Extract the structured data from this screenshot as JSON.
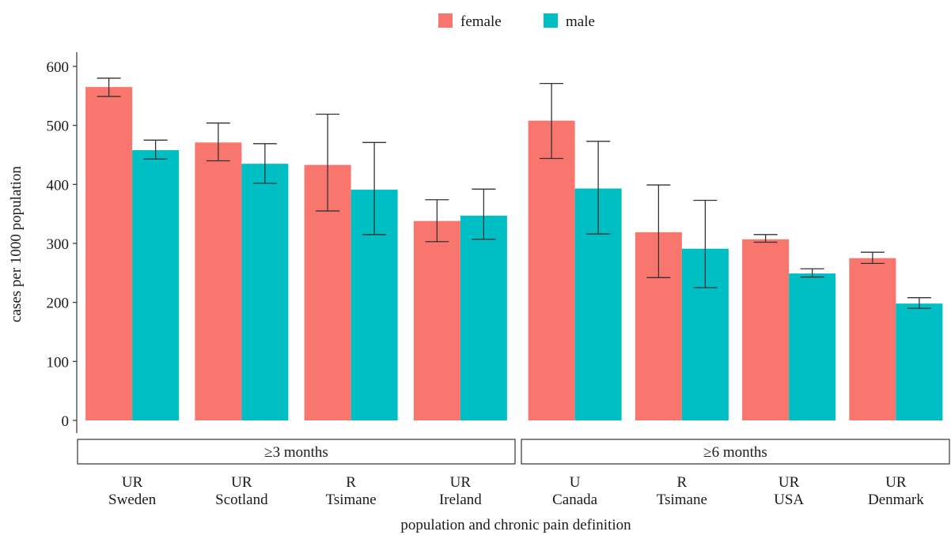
{
  "chart_data": {
    "type": "bar",
    "xlabel": "population and chronic pain definition",
    "ylabel": "cases per 1000 population",
    "ylim": [
      0,
      600
    ],
    "yticks": [
      "0",
      "100",
      "200",
      "300",
      "400",
      "500",
      "600"
    ],
    "legend": {
      "position": "top",
      "entries": [
        "female",
        "male"
      ]
    },
    "colors": {
      "female": "#F8766D",
      "male": "#00BFC4"
    },
    "grid": false,
    "facets": [
      {
        "label": "≥3 months",
        "groups": [
          {
            "label_1": "UR",
            "label_2": "Sweden",
            "female": {
              "value": 565,
              "lo": 549,
              "hi": 580
            },
            "male": {
              "value": 458,
              "lo": 443,
              "hi": 475
            }
          },
          {
            "label_1": "UR",
            "label_2": "Scotland",
            "female": {
              "value": 471,
              "lo": 440,
              "hi": 504
            },
            "male": {
              "value": 435,
              "lo": 402,
              "hi": 469
            }
          },
          {
            "label_1": "R",
            "label_2": "Tsimane",
            "female": {
              "value": 433,
              "lo": 355,
              "hi": 519
            },
            "male": {
              "value": 391,
              "lo": 315,
              "hi": 471
            }
          },
          {
            "label_1": "UR",
            "label_2": "Ireland",
            "female": {
              "value": 338,
              "lo": 303,
              "hi": 374
            },
            "male": {
              "value": 347,
              "lo": 307,
              "hi": 392
            }
          }
        ]
      },
      {
        "label": "≥6 months",
        "groups": [
          {
            "label_1": "U",
            "label_2": "Canada",
            "female": {
              "value": 508,
              "lo": 444,
              "hi": 571
            },
            "male": {
              "value": 393,
              "lo": 316,
              "hi": 473
            }
          },
          {
            "label_1": "R",
            "label_2": "Tsimane",
            "female": {
              "value": 319,
              "lo": 242,
              "hi": 399
            },
            "male": {
              "value": 291,
              "lo": 225,
              "hi": 373
            }
          },
          {
            "label_1": "UR",
            "label_2": "USA",
            "female": {
              "value": 307,
              "lo": 302,
              "hi": 315
            },
            "male": {
              "value": 249,
              "lo": 243,
              "hi": 257
            }
          },
          {
            "label_1": "UR",
            "label_2": "Denmark",
            "female": {
              "value": 275,
              "lo": 266,
              "hi": 285
            },
            "male": {
              "value": 198,
              "lo": 190,
              "hi": 208
            }
          }
        ]
      }
    ]
  }
}
